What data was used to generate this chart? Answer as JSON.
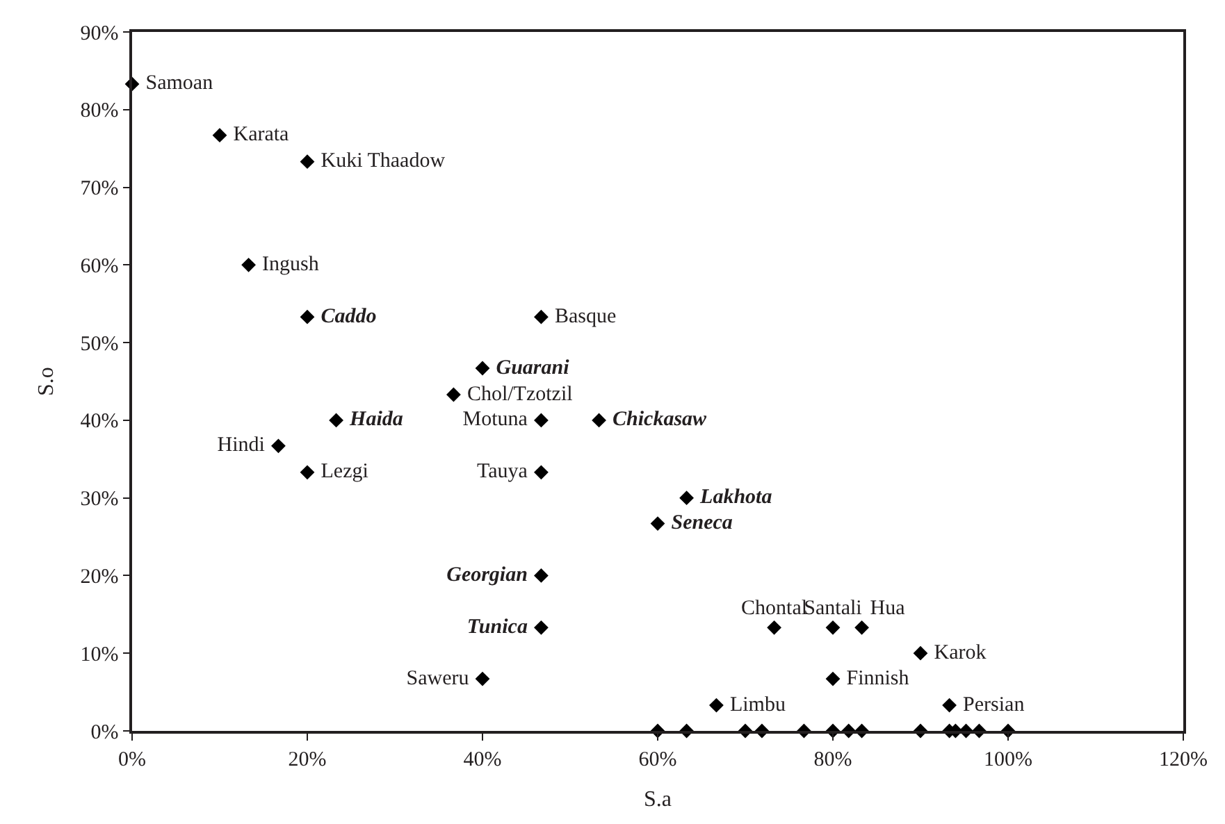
{
  "chart_data": {
    "type": "scatter",
    "xlabel": "S.a",
    "ylabel": "S.o",
    "marker": "diamond",
    "xlim": [
      0,
      120
    ],
    "ylim": [
      0,
      90
    ],
    "xticks": [
      {
        "value": 0,
        "label": "0%"
      },
      {
        "value": 20,
        "label": "20%"
      },
      {
        "value": 40,
        "label": "40%"
      },
      {
        "value": 60,
        "label": "60%"
      },
      {
        "value": 80,
        "label": "80%"
      },
      {
        "value": 100,
        "label": "100%"
      },
      {
        "value": 120,
        "label": "120%"
      }
    ],
    "yticks": [
      {
        "value": 0,
        "label": "0%"
      },
      {
        "value": 10,
        "label": "10%"
      },
      {
        "value": 20,
        "label": "20%"
      },
      {
        "value": 30,
        "label": "30%"
      },
      {
        "value": 40,
        "label": "40%"
      },
      {
        "value": 50,
        "label": "50%"
      },
      {
        "value": 60,
        "label": "60%"
      },
      {
        "value": 70,
        "label": "70%"
      },
      {
        "value": 80,
        "label": "80%"
      },
      {
        "value": 90,
        "label": "90%"
      }
    ],
    "series": [
      {
        "color": "#000000",
        "x": [
          0,
          10,
          20,
          13.3,
          46.7,
          36.7,
          16.7,
          20,
          46.7,
          46.7,
          40,
          66.7,
          73.3,
          80,
          83.3,
          80,
          90,
          93.3,
          60,
          63.3,
          70,
          71.9,
          76.7,
          80,
          81.8,
          83.3,
          90,
          93.3,
          94,
          95.2,
          96.7,
          100
        ],
        "values": [
          83.3,
          76.7,
          73.3,
          60,
          53.3,
          43.3,
          36.7,
          33.3,
          40,
          33.3,
          6.7,
          3.3,
          13.3,
          13.3,
          13.3,
          6.7,
          10,
          3.3,
          0,
          0,
          0,
          0,
          0,
          0,
          0,
          0,
          0,
          0,
          0,
          0,
          0,
          0
        ],
        "value_labels": [
          "Samoan",
          "Karata",
          "Kuki Thaadow",
          "Ingush",
          "Basque",
          "Chol/Tzotzil",
          "Hindi",
          "Lezgi",
          "Motuna",
          "Tauya",
          "Saweru",
          "Limbu",
          "Chontal",
          "Santali",
          "Hua",
          "Finnish",
          "Karok",
          "Persian",
          null,
          null,
          null,
          null,
          null,
          null,
          null,
          null,
          null,
          null,
          null,
          null,
          null,
          null
        ]
      },
      {
        "color": "#000000",
        "x": [
          20,
          40,
          23.3,
          53.3,
          63.3,
          60,
          46.7,
          46.7
        ],
        "values": [
          53.3,
          46.7,
          40,
          40,
          30,
          26.7,
          20,
          13.3
        ],
        "value_labels": [
          "Caddo",
          "Guarani",
          "Haida",
          "Chickasaw",
          "Lakhota",
          "Seneca",
          "Georgian",
          "Tunica"
        ]
      }
    ]
  }
}
